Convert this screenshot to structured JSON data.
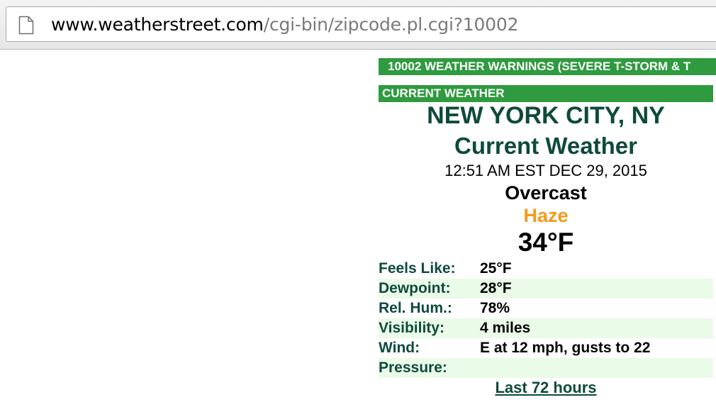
{
  "browser": {
    "url_host": "www.weatherstreet.com",
    "url_path": "/cgi-bin/zipcode.pl.cgi?10002",
    "page_icon": "document-icon"
  },
  "warning": {
    "text": "10002 WEATHER WARNINGS (SEVERE T-STORM & T"
  },
  "current": {
    "section_label": "CURRENT WEATHER",
    "city": "NEW YORK CITY, NY",
    "subtitle": "Current Weather",
    "timestamp": "12:51 AM EST DEC 29, 2015",
    "condition": "Overcast",
    "secondary_condition": "Haze",
    "temperature": "34°F"
  },
  "details": [
    {
      "label": "Feels Like:",
      "value": "25°F"
    },
    {
      "label": "Dewpoint:",
      "value": "28°F"
    },
    {
      "label": "Rel. Hum.:",
      "value": "78%"
    },
    {
      "label": "Visibility:",
      "value": "4 miles"
    },
    {
      "label": "Wind:",
      "value": "E at 12 mph, gusts to 22"
    },
    {
      "label": "Pressure:",
      "value": ""
    }
  ],
  "links": {
    "history": "Last 72 hours"
  },
  "colors": {
    "banner_green": "#2f9a3f",
    "heading_green": "#0e4a3c",
    "haze_orange": "#f59a1a",
    "row_shade": "#eafbe8"
  }
}
